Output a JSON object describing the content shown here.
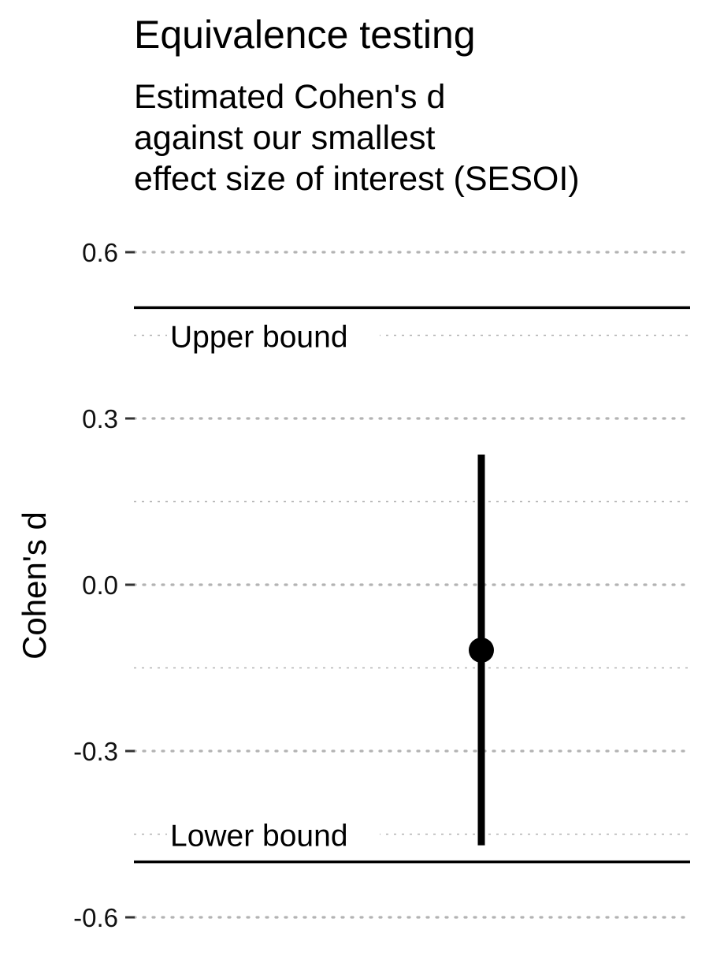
{
  "chart_data": {
    "type": "pointrange",
    "title": "Equivalence testing",
    "subtitle": "Estimated Cohen's d\nagainst our smallest\neffect size of interest (SESOI)",
    "xlabel": "",
    "ylabel": "Cohen's d",
    "ylim": [
      -0.6,
      0.6
    ],
    "y_ticks": [
      0.6,
      0.3,
      0.0,
      -0.3,
      -0.6
    ],
    "y_tick_labels": [
      "0.6",
      "0.3",
      "0.0",
      "-0.3",
      "-0.6"
    ],
    "grid": {
      "major_y": true,
      "minor_y": true,
      "style": "dotted",
      "color": "#b3b3b3"
    },
    "legend": "none",
    "estimate": {
      "point": -0.118,
      "ci_lower": -0.47,
      "ci_upper": 0.235,
      "color": "#000000"
    },
    "bounds": {
      "upper": {
        "value": 0.5,
        "label": "Upper bound"
      },
      "lower": {
        "value": -0.5,
        "label": "Lower bound"
      },
      "color": "#000000"
    }
  }
}
